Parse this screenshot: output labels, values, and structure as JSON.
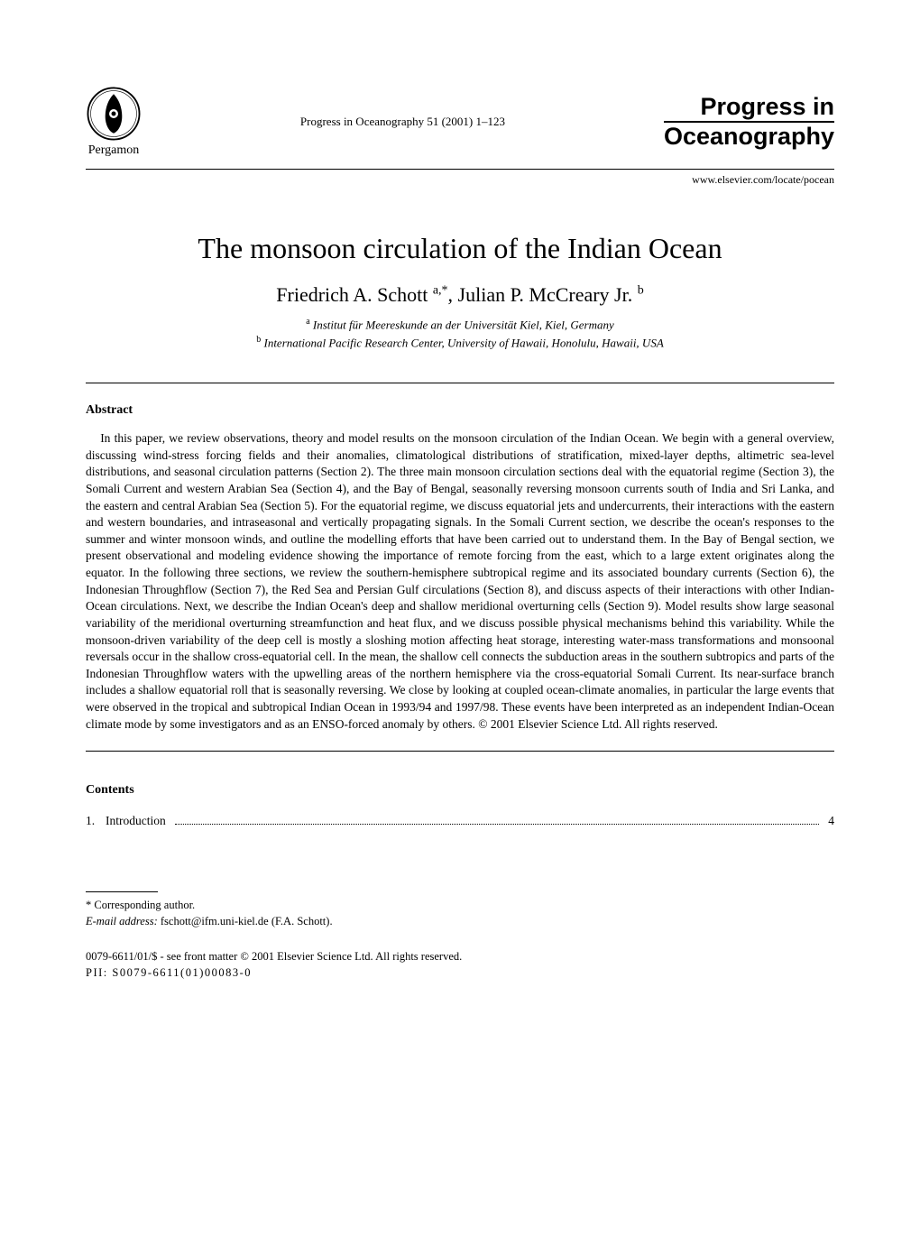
{
  "header": {
    "publisher_name": "Pergamon",
    "citation": "Progress in Oceanography 51 (2001) 1–123",
    "journal_line1": "Progress in",
    "journal_line2": "Oceanography",
    "website": "www.elsevier.com/locate/pocean"
  },
  "paper": {
    "title": "The monsoon circulation of the Indian Ocean",
    "authors_html": "Friedrich A. Schott <sup>a,*</sup>, Julian P. McCreary Jr. <sup>b</sup>",
    "affiliation_a": "Institut für Meereskunde an der Universität Kiel, Kiel, Germany",
    "affiliation_b": "International Pacific Research Center, University of Hawaii, Honolulu, Hawaii, USA"
  },
  "abstract": {
    "heading": "Abstract",
    "body": "In this paper, we review observations, theory and model results on the monsoon circulation of the Indian Ocean. We begin with a general overview, discussing wind-stress forcing fields and their anomalies, climatological distributions of stratification, mixed-layer depths, altimetric sea-level distributions, and seasonal circulation patterns (Section 2). The three main monsoon circulation sections deal with the equatorial regime (Section 3), the Somali Current and western Arabian Sea (Section 4), and the Bay of Bengal, seasonally reversing monsoon currents south of India and Sri Lanka, and the eastern and central Arabian Sea (Section 5). For the equatorial regime, we discuss equatorial jets and undercurrents, their interactions with the eastern and western boundaries, and intraseasonal and vertically propagating signals. In the Somali Current section, we describe the ocean's responses to the summer and winter monsoon winds, and outline the modelling efforts that have been carried out to understand them. In the Bay of Bengal section, we present observational and modeling evidence showing the importance of remote forcing from the east, which to a large extent originates along the equator. In the following three sections, we review the southern-hemisphere subtropical regime and its associated boundary currents (Section 6), the Indonesian Throughflow (Section 7), the Red Sea and Persian Gulf circulations (Section 8), and discuss aspects of their interactions with other Indian-Ocean circulations. Next, we describe the Indian Ocean's deep and shallow meridional overturning cells (Section 9). Model results show large seasonal variability of the meridional overturning streamfunction and heat flux, and we discuss possible physical mechanisms behind this variability. While the monsoon-driven variability of the deep cell is mostly a sloshing motion affecting heat storage, interesting water-mass transformations and monsoonal reversals occur in the shallow cross-equatorial cell. In the mean, the shallow cell connects the subduction areas in the southern subtropics and parts of the Indonesian Throughflow waters with the upwelling areas of the northern hemisphere via the cross-equatorial Somali Current. Its near-surface branch includes a shallow equatorial roll that is seasonally reversing. We close by looking at coupled ocean-climate anomalies, in particular the large events that were observed in the tropical and subtropical Indian Ocean in 1993/94 and 1997/98. These events have been interpreted as an independent Indian-Ocean climate mode by some investigators and as an ENSO-forced anomaly by others. © 2001 Elsevier Science Ltd. All rights reserved."
  },
  "contents": {
    "heading": "Contents",
    "items": [
      {
        "num": "1.",
        "label": "Introduction",
        "page": "4"
      }
    ]
  },
  "footnote": {
    "marker": "* Corresponding author.",
    "email_label": "E-mail address:",
    "email_value": "fschott@ifm.uni-kiel.de  (F.A. Schott)."
  },
  "copyright": {
    "line1": "0079-6611/01/$ - see front matter © 2001 Elsevier Science Ltd. All rights reserved.",
    "line2": "PII: S0079-6611(01)00083-0"
  }
}
